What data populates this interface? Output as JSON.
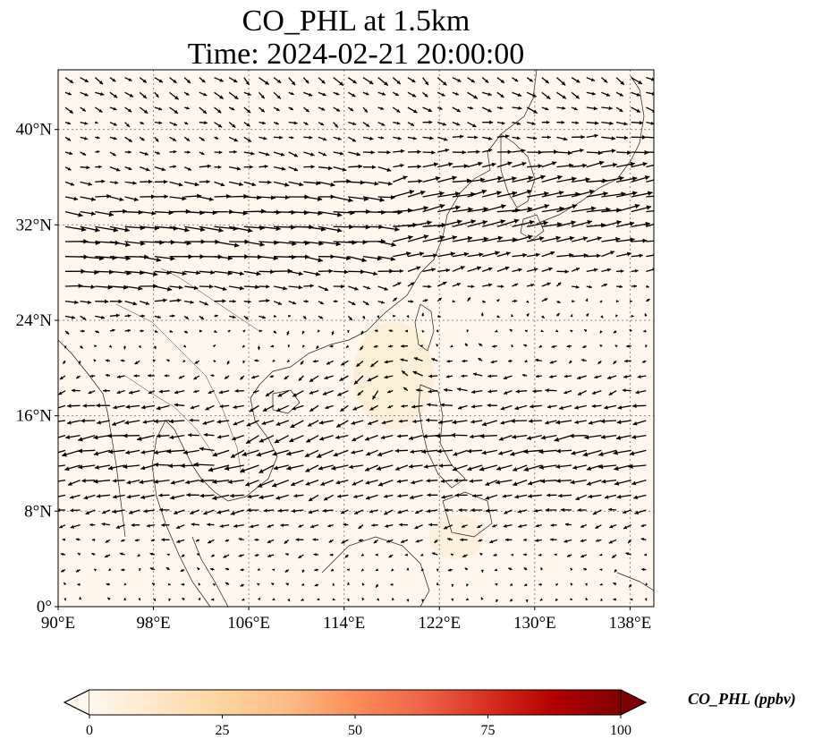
{
  "title": {
    "line1": "CO_PHL at 1.5km",
    "line2": "Time: 2024-02-21 20:00:00"
  },
  "map": {
    "lon_range": [
      90,
      140
    ],
    "lat_range": [
      0,
      45
    ],
    "x_ticks": [
      {
        "value": 90,
        "label": "90°E"
      },
      {
        "value": 98,
        "label": "98°E"
      },
      {
        "value": 106,
        "label": "106°E"
      },
      {
        "value": 114,
        "label": "114°E"
      },
      {
        "value": 122,
        "label": "122°E"
      },
      {
        "value": 130,
        "label": "130°E"
      },
      {
        "value": 138,
        "label": "138°E"
      }
    ],
    "y_ticks": [
      {
        "value": 0,
        "label": "0°"
      },
      {
        "value": 8,
        "label": "8°N"
      },
      {
        "value": 16,
        "label": "16°N"
      },
      {
        "value": 24,
        "label": "24°N"
      },
      {
        "value": 32,
        "label": "32°N"
      },
      {
        "value": 40,
        "label": "40°N"
      }
    ],
    "gridlines": true,
    "background_color": "#fff7ec",
    "field_variable": "CO_PHL",
    "field_level": "1.5km",
    "overlay": "wind vectors"
  },
  "colorbar": {
    "label": "CO_PHL (ppbv)",
    "min": 0,
    "max": 100,
    "extend": "both",
    "colormap": "OrRd",
    "colors": [
      "#fff7ec",
      "#fee8c8",
      "#fdd49e",
      "#fdbb84",
      "#fc8d59",
      "#ef6548",
      "#d7301f",
      "#b30000",
      "#7f0000"
    ],
    "ticks": [
      {
        "value": 0,
        "label": "0"
      },
      {
        "value": 25,
        "label": "25"
      },
      {
        "value": 50,
        "label": "50"
      },
      {
        "value": 75,
        "label": "75"
      },
      {
        "value": 100,
        "label": "100"
      }
    ]
  }
}
